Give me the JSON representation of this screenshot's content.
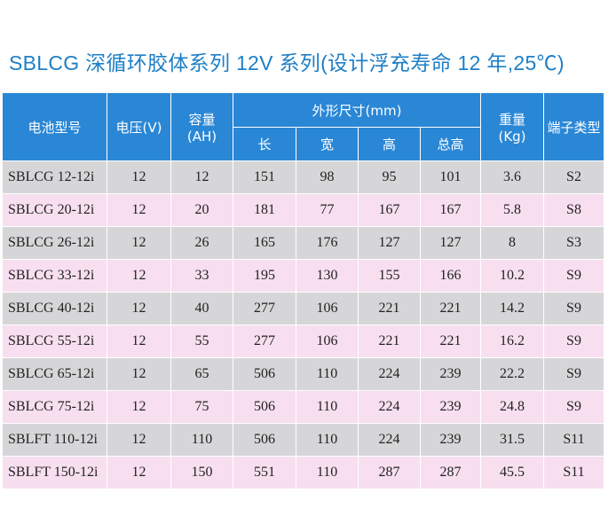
{
  "title": "SBLCG 深循环胶体系列 12V 系列(设计浮充寿命 12 年,25℃)",
  "headers": {
    "model": "电池型号",
    "voltage": "电压(V)",
    "capacity_line1": "容量",
    "capacity_line2": "(AH)",
    "dimensions": "外形尺寸(mm)",
    "length": "长",
    "width": "宽",
    "height": "高",
    "total_height": "总高",
    "weight_line1": "重量",
    "weight_line2": "(Kg)",
    "terminal": "端子类型"
  },
  "rows": [
    {
      "model": "SBLCG 12-12i",
      "voltage": "12",
      "capacity": "12",
      "length": "151",
      "width": "98",
      "height": "95",
      "total_height": "101",
      "weight": "3.6",
      "terminal": "S2"
    },
    {
      "model": "SBLCG 20-12i",
      "voltage": "12",
      "capacity": "20",
      "length": "181",
      "width": "77",
      "height": "167",
      "total_height": "167",
      "weight": "5.8",
      "terminal": "S8"
    },
    {
      "model": "SBLCG 26-12i",
      "voltage": "12",
      "capacity": "26",
      "length": "165",
      "width": "176",
      "height": "127",
      "total_height": "127",
      "weight": "8",
      "terminal": "S3"
    },
    {
      "model": "SBLCG 33-12i",
      "voltage": "12",
      "capacity": "33",
      "length": "195",
      "width": "130",
      "height": "155",
      "total_height": "166",
      "weight": "10.2",
      "terminal": "S9"
    },
    {
      "model": "SBLCG 40-12i",
      "voltage": "12",
      "capacity": "40",
      "length": "277",
      "width": "106",
      "height": "221",
      "total_height": "221",
      "weight": "14.2",
      "terminal": "S9"
    },
    {
      "model": "SBLCG 55-12i",
      "voltage": "12",
      "capacity": "55",
      "length": "277",
      "width": "106",
      "height": "221",
      "total_height": "221",
      "weight": "16.2",
      "terminal": "S9"
    },
    {
      "model": "SBLCG 65-12i",
      "voltage": "12",
      "capacity": "65",
      "length": "506",
      "width": "110",
      "height": "224",
      "total_height": "239",
      "weight": "22.2",
      "terminal": "S9"
    },
    {
      "model": "SBLCG 75-12i",
      "voltage": "12",
      "capacity": "75",
      "length": "506",
      "width": "110",
      "height": "224",
      "total_height": "239",
      "weight": "24.8",
      "terminal": "S9"
    },
    {
      "model": "SBLFT 110-12i",
      "voltage": "12",
      "capacity": "110",
      "length": "506",
      "width": "110",
      "height": "224",
      "total_height": "239",
      "weight": "31.5",
      "terminal": "S11"
    },
    {
      "model": "SBLFT 150-12i",
      "voltage": "12",
      "capacity": "150",
      "length": "551",
      "width": "110",
      "height": "287",
      "total_height": "287",
      "weight": "45.5",
      "terminal": "S11"
    }
  ],
  "colors": {
    "title": "#1e7fc6",
    "header_bg": "#2a87d6",
    "row_gray": "#d6d6d8",
    "row_pink": "#f7dff0"
  }
}
